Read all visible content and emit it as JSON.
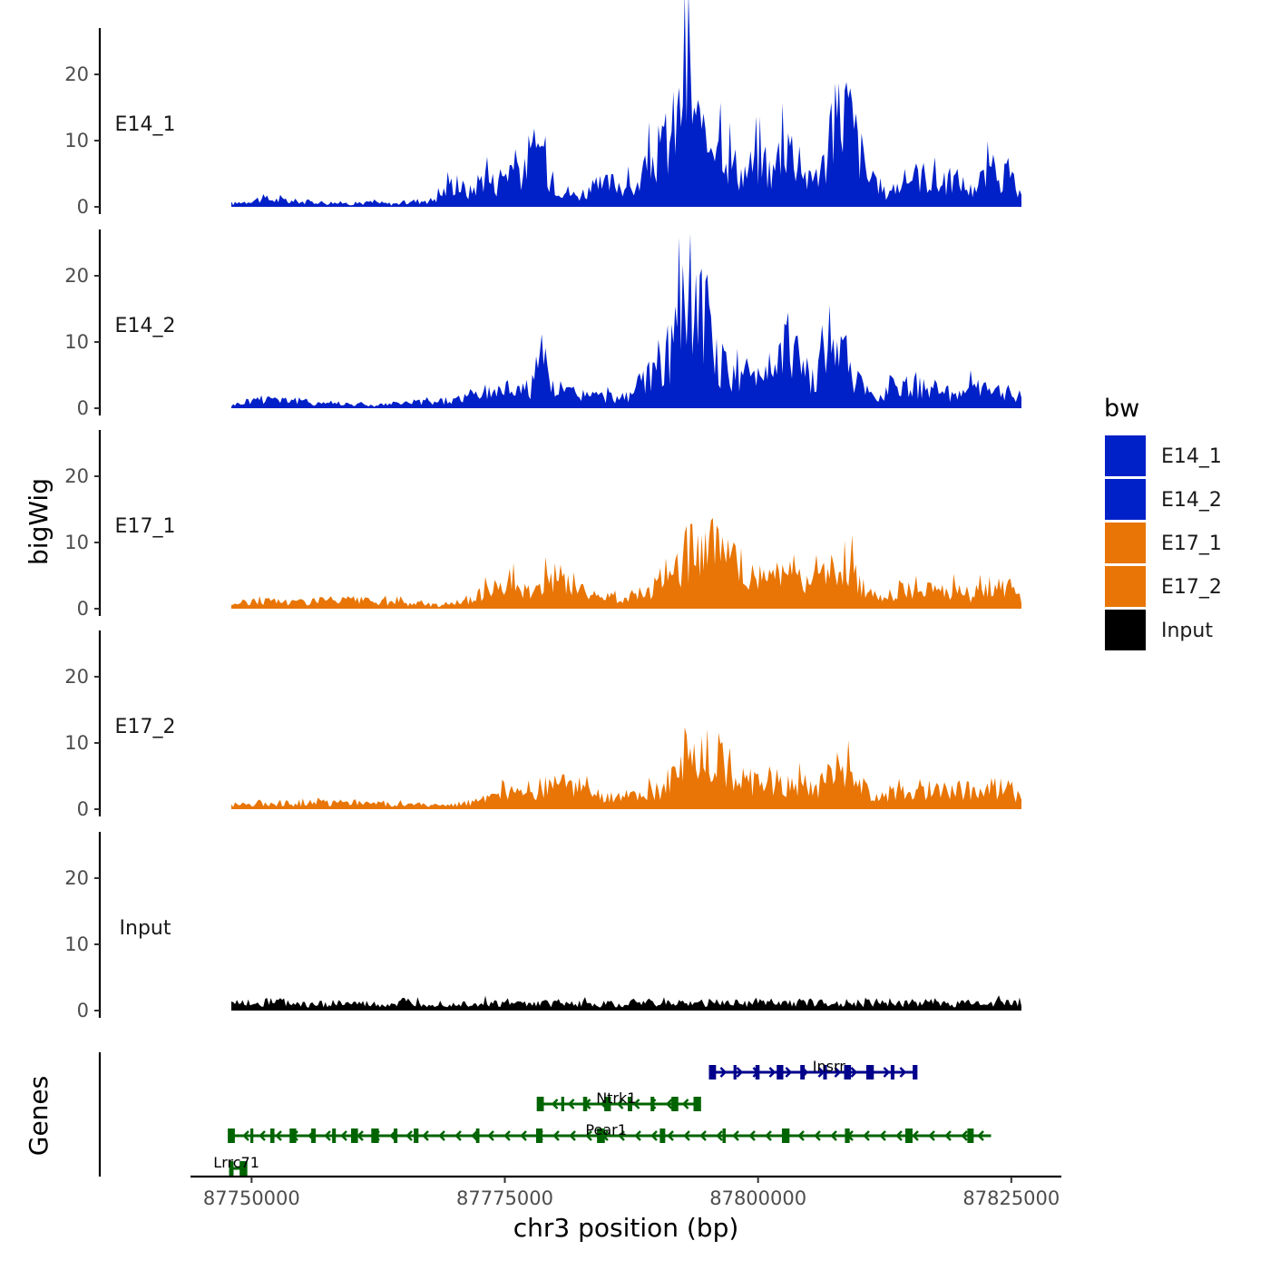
{
  "chart_data": {
    "type": "area",
    "description_free": true,
    "ylabel": "bigWig",
    "xlabel": "chr3 position (bp)",
    "genes_label": "Genes",
    "xlim": [
      87740000,
      87826000
    ],
    "ylim": [
      0,
      27
    ],
    "x_ticks": [
      87750000,
      87775000,
      87800000,
      87825000
    ],
    "x_tick_labels": [
      "87750000",
      "87775000",
      "87800000",
      "87825000"
    ],
    "y_ticks": [
      0,
      10,
      20
    ],
    "y_tick_labels": [
      "0",
      "10",
      "20"
    ],
    "legend": {
      "title": "bw",
      "entries": [
        {
          "label": "E14_1",
          "color": "#0020C8"
        },
        {
          "label": "E14_2",
          "color": "#0020C8"
        },
        {
          "label": "E17_1",
          "color": "#E87505"
        },
        {
          "label": "E17_2",
          "color": "#E87505"
        },
        {
          "label": "Input",
          "color": "#000000"
        }
      ]
    },
    "series": [
      {
        "name": "E14_1",
        "color": "#0020C8",
        "x": [
          87748000,
          87751000,
          87754000,
          87757000,
          87760000,
          87762000,
          87764000,
          87766000,
          87768000,
          87770000,
          87771500,
          87773000,
          87774000,
          87775500,
          87777000,
          87778500,
          87779500,
          87780500,
          87782000,
          87784000,
          87786000,
          87788000,
          87789500,
          87791000,
          87792500,
          87793200,
          87793800,
          87794800,
          87795500,
          87796300,
          87797000,
          87798500,
          87800000,
          87801500,
          87802500,
          87803500,
          87805000,
          87806500,
          87807500,
          87808500,
          87809800,
          87811000,
          87812500,
          87814000,
          87816000,
          87818000,
          87819500,
          87821000,
          87823000,
          87825000,
          87826000
        ],
        "y": [
          0.5,
          1.5,
          1.0,
          0.8,
          0.6,
          0.8,
          0.5,
          1.0,
          1.2,
          4.5,
          2.5,
          6.0,
          4.0,
          7.5,
          6.0,
          11.5,
          5.5,
          3.5,
          2.0,
          3.5,
          4.5,
          3.0,
          8.5,
          11.0,
          18.5,
          22.5,
          17.0,
          9.5,
          15.0,
          16.5,
          9.0,
          6.0,
          8.5,
          6.0,
          13.0,
          10.0,
          4.5,
          7.5,
          14.0,
          19.5,
          12.0,
          4.5,
          2.5,
          4.0,
          6.0,
          4.0,
          5.0,
          3.0,
          6.5,
          4.5,
          1.5
        ]
      },
      {
        "name": "E14_2",
        "color": "#0020C8",
        "x": [
          87748000,
          87750000,
          87752000,
          87754000,
          87756000,
          87758000,
          87760000,
          87762000,
          87764000,
          87766000,
          87768000,
          87770000,
          87772000,
          87774000,
          87776000,
          87777500,
          87778500,
          87779500,
          87781000,
          87783000,
          87785000,
          87787000,
          87788500,
          87790000,
          87791500,
          87792700,
          87793300,
          87794000,
          87795000,
          87796000,
          87797000,
          87798500,
          87800000,
          87801500,
          87803000,
          87804000,
          87805500,
          87806800,
          87807800,
          87809000,
          87810500,
          87812000,
          87813500,
          87815000,
          87817000,
          87819000,
          87821000,
          87823000,
          87825000,
          87826000
        ],
        "y": [
          0.5,
          1.5,
          2.0,
          1.5,
          1.0,
          1.0,
          0.8,
          0.5,
          0.8,
          1.0,
          1.2,
          1.5,
          2.5,
          3.0,
          4.0,
          3.5,
          10.5,
          4.0,
          3.0,
          2.5,
          2.0,
          2.0,
          4.5,
          6.5,
          10.0,
          18.5,
          25.0,
          17.0,
          13.0,
          8.5,
          7.0,
          5.0,
          6.5,
          9.0,
          12.5,
          8.5,
          4.5,
          11.0,
          15.0,
          7.0,
          3.0,
          2.0,
          5.0,
          3.5,
          4.0,
          2.5,
          3.5,
          3.0,
          3.0,
          2.0
        ]
      },
      {
        "name": "E17_1",
        "color": "#E87505",
        "x": [
          87748000,
          87751000,
          87754000,
          87757000,
          87760000,
          87763000,
          87766000,
          87768500,
          87770500,
          87772000,
          87773500,
          87775000,
          87776500,
          87777800,
          87779000,
          87780500,
          87782000,
          87784000,
          87786000,
          87788000,
          87789500,
          87791000,
          87792500,
          87793500,
          87794500,
          87795500,
          87796500,
          87797500,
          87798500,
          87800000,
          87801500,
          87803000,
          87804500,
          87806000,
          87807500,
          87808500,
          87809800,
          87811000,
          87812500,
          87814000,
          87816000,
          87818000,
          87819500,
          87821000,
          87823000,
          87825000,
          87826000
        ],
        "y": [
          0.8,
          1.5,
          1.2,
          1.5,
          1.5,
          1.2,
          1.0,
          0.6,
          1.2,
          1.5,
          4.5,
          5.5,
          3.5,
          2.5,
          4.5,
          6.0,
          4.0,
          2.0,
          2.0,
          2.5,
          4.0,
          6.0,
          8.0,
          12.5,
          10.0,
          12.0,
          9.0,
          8.5,
          7.0,
          5.5,
          6.5,
          7.5,
          5.0,
          5.5,
          6.5,
          8.5,
          5.0,
          2.5,
          2.5,
          3.5,
          3.5,
          3.0,
          3.5,
          2.5,
          4.0,
          3.5,
          1.5
        ]
      },
      {
        "name": "E17_2",
        "color": "#E87505",
        "x": [
          87748000,
          87751000,
          87754000,
          87757000,
          87760000,
          87763000,
          87766000,
          87769000,
          87771500,
          87773000,
          87774500,
          87776000,
          87777800,
          87779500,
          87781000,
          87783000,
          87785000,
          87787000,
          87789000,
          87790500,
          87792000,
          87793500,
          87794500,
          87795500,
          87796500,
          87797500,
          87798500,
          87800000,
          87801500,
          87803000,
          87804500,
          87806000,
          87807500,
          87808500,
          87809800,
          87811000,
          87812500,
          87814000,
          87816000,
          87818000,
          87819500,
          87821000,
          87823000,
          87825000,
          87826000
        ],
        "y": [
          0.8,
          1.2,
          1.0,
          1.2,
          1.2,
          1.0,
          0.8,
          0.6,
          1.2,
          1.5,
          2.5,
          3.0,
          3.5,
          4.0,
          4.5,
          3.0,
          2.0,
          2.5,
          2.5,
          4.0,
          6.0,
          8.5,
          9.5,
          8.5,
          9.0,
          7.0,
          6.0,
          5.0,
          5.5,
          4.5,
          4.5,
          4.5,
          6.5,
          7.5,
          5.0,
          2.5,
          2.0,
          3.0,
          3.0,
          3.0,
          3.5,
          3.0,
          4.0,
          3.5,
          1.5
        ]
      },
      {
        "name": "Input",
        "color": "#000000",
        "x": [
          87748000,
          87750500,
          87753000,
          87755500,
          87758000,
          87760500,
          87763000,
          87765500,
          87768000,
          87770500,
          87773000,
          87775500,
          87778000,
          87780500,
          87783000,
          87785500,
          87788000,
          87790500,
          87793000,
          87795500,
          87798000,
          87800500,
          87803000,
          87805500,
          87808000,
          87810500,
          87813000,
          87815500,
          87818000,
          87820500,
          87823000,
          87826000
        ],
        "y": [
          1.2,
          1.5,
          1.5,
          1.0,
          1.3,
          1.2,
          1.0,
          1.2,
          1.3,
          1.2,
          1.3,
          1.2,
          1.2,
          1.3,
          1.2,
          1.2,
          1.4,
          1.3,
          1.2,
          1.5,
          1.4,
          1.6,
          1.4,
          1.5,
          1.3,
          1.4,
          1.5,
          1.4,
          1.3,
          1.4,
          1.4,
          1.2
        ]
      }
    ],
    "genes": [
      {
        "name": "Insrr",
        "start": 87795500,
        "end": 87815500,
        "strand": "+",
        "row": 1,
        "color": "#00008B"
      },
      {
        "name": "Ntrk1",
        "start": 87778500,
        "end": 87794000,
        "strand": "-",
        "row": 2,
        "color": "#006400"
      },
      {
        "name": "Pear1",
        "start": 87748000,
        "end": 87823000,
        "strand": "-",
        "row": 3,
        "color": "#006400"
      },
      {
        "name": "Lrrc71",
        "start": 87748000,
        "end": 87749200,
        "strand": "-",
        "row": 4,
        "color": "#006400"
      }
    ]
  }
}
